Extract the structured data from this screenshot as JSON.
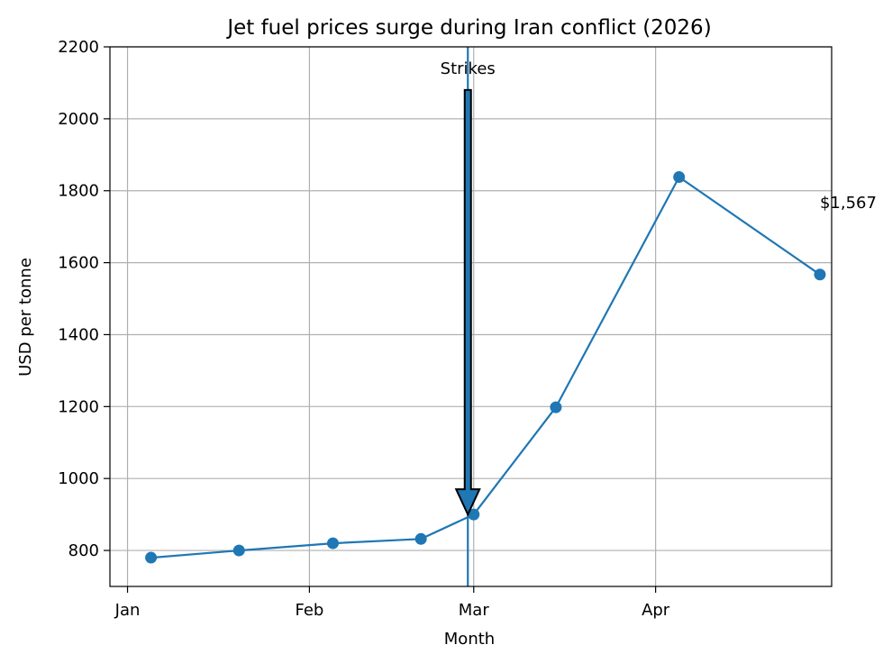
{
  "chart_data": {
    "type": "line",
    "title": "Jet fuel prices surge during Iran conflict (2026)",
    "xlabel": "Month",
    "ylabel": "USD per tonne",
    "x_ticks": [
      {
        "date": "2026-01-01",
        "label": "Jan"
      },
      {
        "date": "2026-02-01",
        "label": "Feb"
      },
      {
        "date": "2026-03-01",
        "label": "Mar"
      },
      {
        "date": "2026-04-01",
        "label": "Apr"
      }
    ],
    "y_ticks": [
      800,
      1000,
      1200,
      1400,
      1600,
      1800,
      2000,
      2200
    ],
    "xlim": [
      "2025-12-29",
      "2026-05-01"
    ],
    "ylim": [
      700,
      2200
    ],
    "grid": true,
    "line_color": "#1f77b4",
    "series": [
      {
        "x": [
          "2026-01-05",
          "2026-01-20",
          "2026-02-05",
          "2026-02-20",
          "2026-03-01",
          "2026-03-15",
          "2026-04-05",
          "2026-04-29"
        ],
        "y": [
          780,
          800,
          820,
          832,
          900,
          1198,
          1838,
          1567
        ]
      }
    ],
    "annotations": [
      {
        "type": "vline",
        "x": "2026-02-28"
      },
      {
        "type": "arrow",
        "text": "Strikes",
        "x": "2026-02-28",
        "text_y": 2100,
        "point_y": 900
      },
      {
        "type": "label",
        "text": "$1,567",
        "x": "2026-04-29",
        "y": 1767
      }
    ]
  }
}
